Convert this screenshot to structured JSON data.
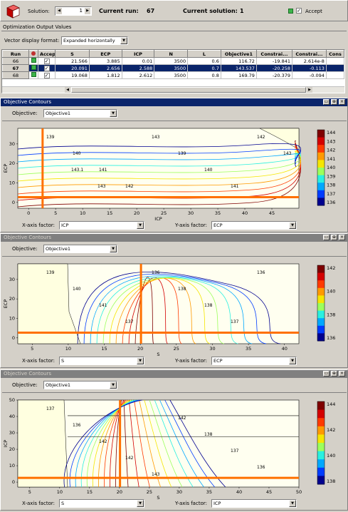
{
  "toolbar": {
    "solution_label": "Solution:",
    "solution_value": "1",
    "current_run_label": "Current run:",
    "current_run_value": "67",
    "current_solution_label": "Current solution:",
    "current_solution_value": "1",
    "accept_label": "Accept"
  },
  "output": {
    "title": "Optimization Output Values",
    "vector_label": "Vector display format:",
    "vector_value": "Expanded horizontally",
    "columns": [
      "Run",
      "",
      "Accept",
      "S",
      "ECP",
      "ICP",
      "N",
      "L",
      "Objective1",
      "Constrai...",
      "Constrai...",
      "Cons"
    ],
    "rows": [
      {
        "run": "66",
        "S": "21.566",
        "ECP": "3.885",
        "ICP": "0.01",
        "N": "3500",
        "L": "0.6",
        "obj": "116.72",
        "c1": "-19.841",
        "c2": "2.614e-8"
      },
      {
        "run": "67",
        "S": "20.091",
        "ECP": "2.656",
        "ICP": "2.588",
        "N": "3500",
        "L": "0.7",
        "obj": "143.537",
        "c1": "-20.258",
        "c2": "-0.113"
      },
      {
        "run": "68",
        "S": "19.068",
        "ECP": "1.812",
        "ICP": "2.612",
        "N": "3500",
        "L": "0.8",
        "obj": "169.79",
        "c1": "-20.379",
        "c2": "-0.094"
      }
    ]
  },
  "panels": [
    {
      "title": "Objective Contours",
      "objective_label": "Objective:",
      "objective_value": "Objective1",
      "x_label": "X-axis factor:",
      "x_value": "ICP",
      "y_label": "Y-axis factor:",
      "y_value": "ECP",
      "axis_x": "ICP",
      "axis_y": "ECP"
    },
    {
      "title": "Objective Contours",
      "objective_label": "Objective:",
      "objective_value": "Objective1",
      "x_label": "X-axis factor:",
      "x_value": "S",
      "y_label": "Y-axis factor:",
      "y_value": "ECP",
      "axis_x": "S",
      "axis_y": "ECP"
    },
    {
      "title": "Objective Contours",
      "objective_label": "Objective:",
      "objective_value": "Objective1",
      "x_label": "X-axis factor:",
      "x_value": "S",
      "y_label": "Y-axis factor:",
      "y_value": "ICP",
      "axis_x": "S",
      "axis_y": "ICP"
    }
  ],
  "chart_data": [
    {
      "type": "contour",
      "xlabel": "ICP",
      "ylabel": "ECP",
      "xticks": [
        0,
        5,
        10,
        15,
        20,
        25,
        30,
        35,
        40,
        45
      ],
      "yticks": [
        0,
        10,
        20,
        30
      ],
      "colorbar_ticks": [
        144,
        143,
        142,
        141,
        140,
        139,
        138,
        137,
        136
      ],
      "contour_labels": [
        "139",
        "140",
        "141",
        "142",
        "143",
        "139",
        "140",
        "141",
        "142",
        "143",
        "143.1",
        "143"
      ],
      "crosshair": {
        "x": 2.588,
        "y": 2.656
      }
    },
    {
      "type": "contour",
      "xlabel": "S",
      "ylabel": "ECP",
      "xticks": [
        5,
        10,
        15,
        20,
        25,
        30,
        35,
        40
      ],
      "yticks": [
        0,
        10,
        20,
        30
      ],
      "colorbar_ticks": [
        142,
        140,
        138,
        136
      ],
      "contour_labels": [
        "139",
        "140",
        "141",
        "137",
        "136",
        "138",
        "138",
        "137",
        "136"
      ],
      "crosshair": {
        "x": 20.091,
        "y": 2.656
      }
    },
    {
      "type": "contour",
      "xlabel": "S",
      "ylabel": "ICP",
      "xticks": [
        5,
        10,
        15,
        20,
        25,
        30,
        35,
        40,
        45,
        50
      ],
      "yticks": [
        0,
        10,
        20,
        30,
        40,
        50
      ],
      "colorbar_ticks": [
        144,
        142,
        140,
        138
      ],
      "contour_labels": [
        "137",
        "136",
        "142",
        "142",
        "143",
        "142",
        "138",
        "137",
        "136"
      ],
      "crosshair": {
        "x": 20.091,
        "y": 2.588
      }
    }
  ]
}
